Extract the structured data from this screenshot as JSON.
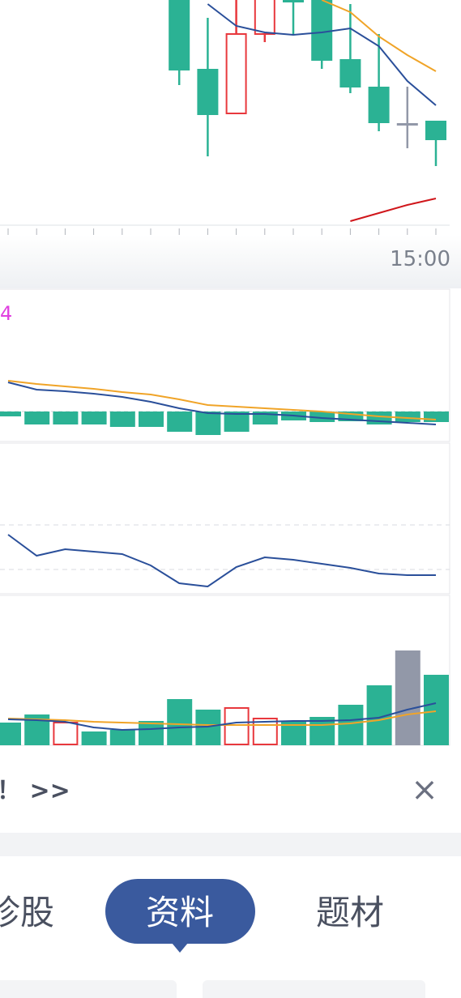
{
  "chart_data": [
    {
      "type": "candlestick",
      "categories": [
        null,
        null,
        null,
        null,
        null,
        null,
        null,
        null,
        null,
        null,
        null,
        null,
        null,
        null,
        null,
        "15:00"
      ],
      "ylim": [
        0,
        278
      ],
      "open": [
        null,
        null,
        null,
        null,
        null,
        null,
        300,
        193,
        138,
        236,
        300,
        300,
        205,
        171,
        126,
        129
      ],
      "close": [
        null,
        null,
        null,
        null,
        null,
        null,
        191,
        136,
        236,
        300,
        275,
        203,
        170,
        126,
        126,
        105
      ],
      "high": [
        null,
        null,
        null,
        null,
        null,
        null,
        300,
        256,
        300,
        300,
        300,
        300,
        273,
        236,
        171,
        129
      ],
      "low": [
        null,
        null,
        null,
        null,
        null,
        null,
        173,
        85,
        138,
        226,
        236,
        193,
        163,
        116,
        95,
        73
      ],
      "up_color": "#e8383d",
      "down_color": "#2bb294",
      "flat_color": "#9298a8",
      "series": [
        {
          "color": "#2a4f9a",
          "values": [
            null,
            null,
            null,
            null,
            null,
            null,
            null,
            273,
            246,
            238,
            235,
            238,
            243,
            221,
            178,
            148
          ]
        },
        {
          "color": "#f0a428",
          "values": [
            null,
            null,
            null,
            null,
            null,
            null,
            null,
            null,
            null,
            null,
            null,
            278,
            263,
            233,
            210,
            190
          ]
        },
        {
          "color": "#d0161b",
          "values": [
            null,
            null,
            null,
            null,
            null,
            null,
            null,
            null,
            null,
            null,
            null,
            null,
            5,
            15,
            25,
            33
          ]
        }
      ]
    },
    {
      "type": "macd",
      "annotation": "4",
      "annotation_color": "#e040e0",
      "ylim": [
        -37,
        151
      ],
      "values": [
        -6,
        -16,
        -16,
        -16,
        -19,
        -19,
        -25,
        -29,
        -25,
        -16,
        -11,
        -13,
        -12,
        -16,
        -13,
        -13
      ],
      "color": "#2bb294",
      "series": [
        {
          "color": "#f0a428",
          "values": [
            38,
            34,
            31,
            28,
            24,
            21,
            15,
            8,
            6,
            4,
            2,
            0,
            -3,
            -6,
            -8,
            -10
          ]
        },
        {
          "color": "#2a4f9a",
          "values": [
            36,
            27,
            25,
            22,
            18,
            12,
            4,
            -2,
            -3,
            -3,
            -5,
            -8,
            -10,
            -12,
            -14,
            -16
          ]
        }
      ]
    },
    {
      "type": "line",
      "ylim": [
        0,
        186
      ],
      "ref_lines": [
        85,
        30
      ],
      "series": [
        {
          "color": "#2a4f9a",
          "values": [
            73,
            47,
            55,
            52,
            49,
            35,
            13,
            9,
            33,
            45,
            42,
            37,
            32,
            25,
            23,
            23
          ]
        }
      ]
    },
    {
      "type": "volume",
      "ylim": [
        0,
        185
      ],
      "values": [
        28,
        38,
        28,
        17,
        19,
        30,
        57,
        44,
        46,
        33,
        29,
        35,
        50,
        74,
        117,
        87
      ],
      "colors": [
        "#2bb294",
        "#2bb294",
        "#e8383d",
        "#2bb294",
        "#2bb294",
        "#2bb294",
        "#2bb294",
        "#2bb294",
        "#e8383d",
        "#e8383d",
        "#2bb294",
        "#2bb294",
        "#2bb294",
        "#2bb294",
        "#9298a8",
        "#2bb294"
      ],
      "series": [
        {
          "color": "#f0a428",
          "values": [
            33,
            32,
            31,
            29,
            28,
            27,
            26,
            25,
            25,
            25,
            25,
            25,
            27,
            31,
            38,
            42
          ]
        },
        {
          "color": "#2a4f9a",
          "values": [
            32,
            31,
            29,
            22,
            19,
            20,
            22,
            23,
            28,
            29,
            30,
            30,
            31,
            34,
            44,
            52
          ]
        }
      ]
    }
  ],
  "banner": {
    "text": "！ >>",
    "close": "×"
  },
  "tabs": [
    "诊股",
    "资料",
    "题材"
  ],
  "active_tab": 1
}
